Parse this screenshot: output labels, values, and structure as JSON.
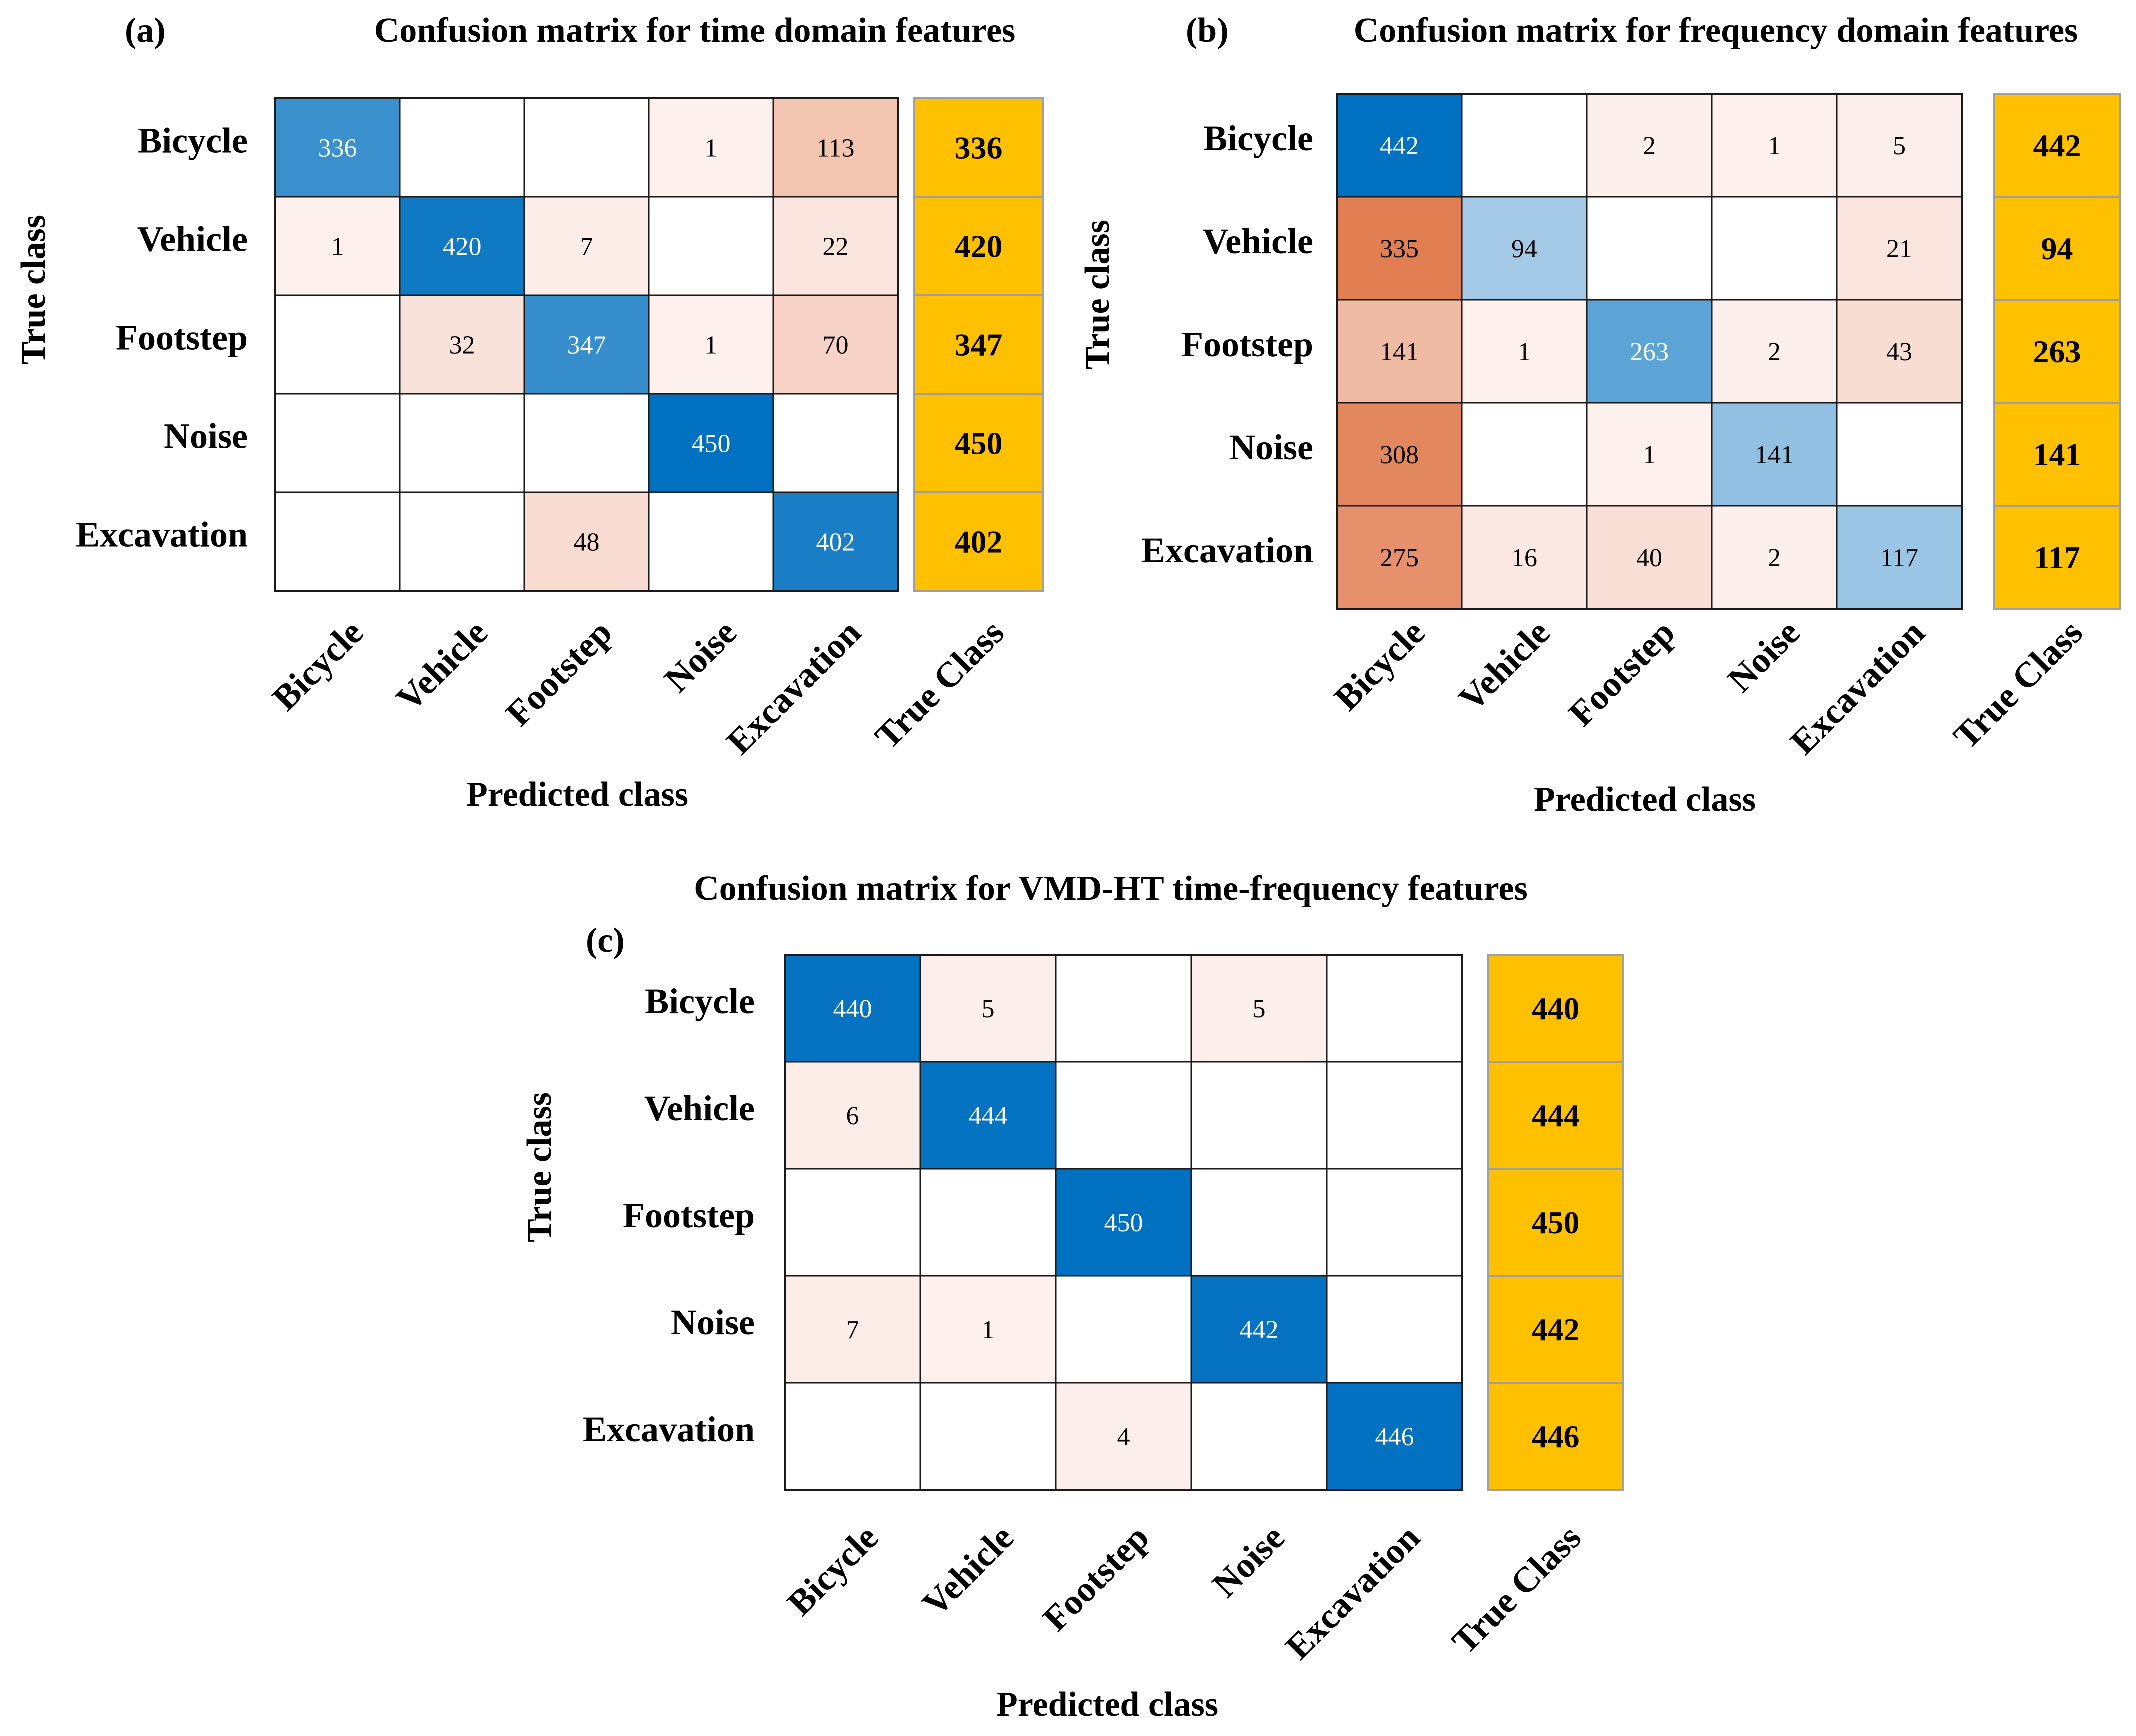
{
  "chart_data": [
    {
      "type": "heatmap",
      "panel": "(a)",
      "title": "Confusion matrix for time domain features",
      "xlabel": "Predicted class",
      "ylabel": "True class",
      "classes": [
        "Bicycle",
        "Vehicle",
        "Footstep",
        "Noise",
        "Excavation"
      ],
      "total_header": "True Class",
      "matrix": [
        [
          336,
          null,
          null,
          1,
          113
        ],
        [
          1,
          420,
          7,
          null,
          22
        ],
        [
          null,
          32,
          347,
          1,
          70
        ],
        [
          null,
          null,
          null,
          450,
          null
        ],
        [
          null,
          null,
          48,
          null,
          402
        ]
      ],
      "totals": [
        336,
        420,
        347,
        450,
        402
      ]
    },
    {
      "type": "heatmap",
      "panel": "(b)",
      "title": "Confusion matrix for frequency domain features",
      "xlabel": "Predicted class",
      "ylabel": "True class",
      "classes": [
        "Bicycle",
        "Vehicle",
        "Footstep",
        "Noise",
        "Excavation"
      ],
      "total_header": "True Class",
      "matrix": [
        [
          442,
          null,
          2,
          1,
          5
        ],
        [
          335,
          94,
          null,
          null,
          21
        ],
        [
          141,
          1,
          263,
          2,
          43
        ],
        [
          308,
          null,
          1,
          141,
          null
        ],
        [
          275,
          16,
          40,
          2,
          117
        ]
      ],
      "totals": [
        442,
        94,
        263,
        141,
        117
      ]
    },
    {
      "type": "heatmap",
      "panel": "(c)",
      "title": "Confusion matrix for VMD-HT time-frequency features",
      "xlabel": "Predicted class",
      "ylabel": "True class",
      "classes": [
        "Bicycle",
        "Vehicle",
        "Footstep",
        "Noise",
        "Excavation"
      ],
      "total_header": "True Class",
      "matrix": [
        [
          440,
          5,
          null,
          5,
          null
        ],
        [
          6,
          444,
          null,
          null,
          null
        ],
        [
          null,
          null,
          450,
          null,
          null
        ],
        [
          7,
          1,
          null,
          442,
          null
        ],
        [
          null,
          null,
          4,
          null,
          446
        ]
      ],
      "totals": [
        440,
        444,
        450,
        442,
        446
      ]
    }
  ],
  "colors": {
    "diag_strong": "#0070c0",
    "diag_light": "#bcd7ec",
    "offdiag_strong": "#e07a4c",
    "offdiag_light": "#fdf1ee",
    "totals_fill": "#ffc000",
    "totals_border": "#a0a0a0",
    "grid": "#1a1a1a"
  }
}
